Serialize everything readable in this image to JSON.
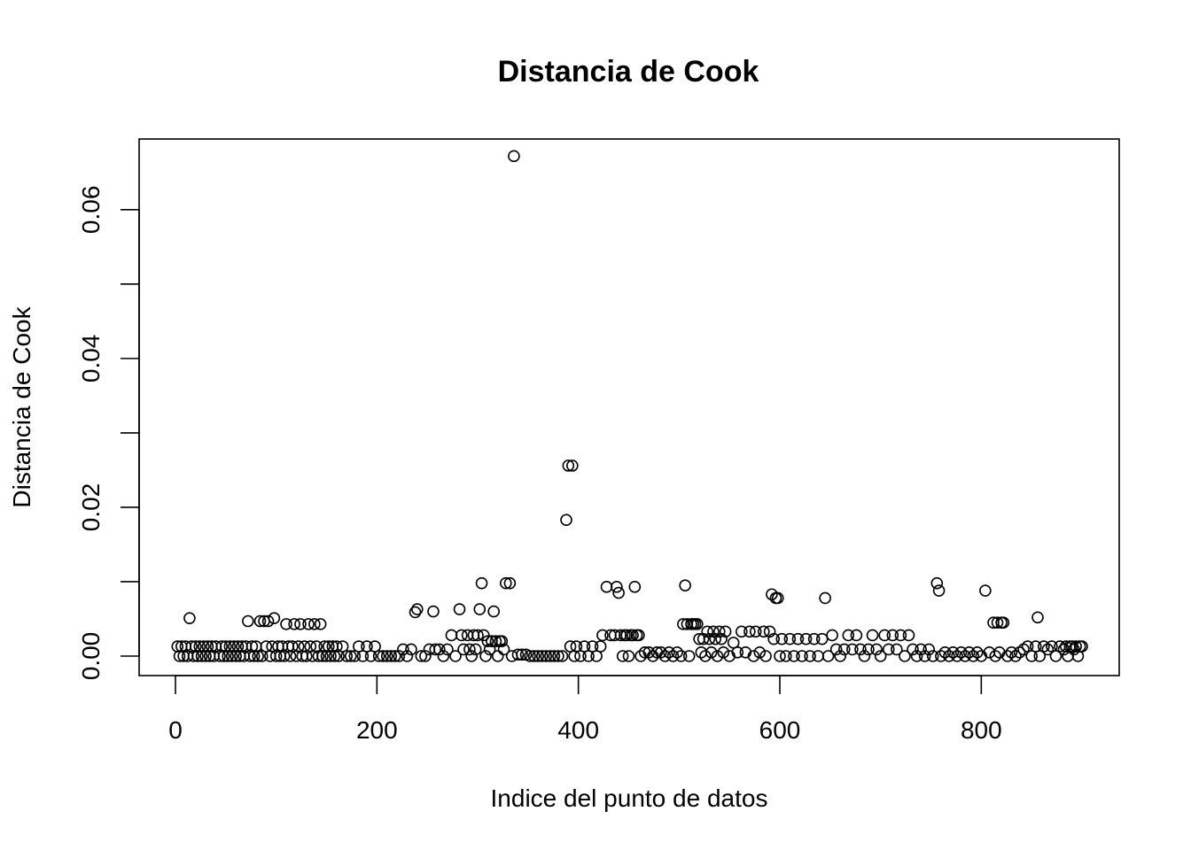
{
  "chart_data": {
    "type": "scatter",
    "title": "Distancia de Cook",
    "xlabel": "Indice del punto de datos",
    "ylabel": "Distancia de Cook",
    "xlim": [
      0,
      900
    ],
    "ylim": [
      0,
      0.067
    ],
    "x_ticks": [
      0,
      200,
      400,
      600,
      800
    ],
    "x_tick_labels": [
      "0",
      "200",
      "400",
      "600",
      "800"
    ],
    "y_ticks": [
      0.0,
      0.01,
      0.02,
      0.03,
      0.04,
      0.05,
      0.06
    ],
    "y_tick_labels": [
      "0.00",
      "",
      "0.02",
      "",
      "0.04",
      "",
      "0.06"
    ],
    "grid": false,
    "marker": "open-circle",
    "series": [
      {
        "points": [
          [
            2,
            0.0013
          ],
          [
            4,
            0.0
          ],
          [
            6,
            0.0013
          ],
          [
            8,
            0.0
          ],
          [
            10,
            0.0013
          ],
          [
            12,
            0.0
          ],
          [
            14,
            0.0051
          ],
          [
            16,
            0.0013
          ],
          [
            18,
            0.0
          ],
          [
            20,
            0.0013
          ],
          [
            22,
            0.0
          ],
          [
            24,
            0.0013
          ],
          [
            26,
            0.0
          ],
          [
            28,
            0.0013
          ],
          [
            30,
            0.0
          ],
          [
            32,
            0.0013
          ],
          [
            34,
            0.0
          ],
          [
            36,
            0.0013
          ],
          [
            38,
            0.0
          ],
          [
            40,
            0.0013
          ],
          [
            44,
            0.0
          ],
          [
            46,
            0.0013
          ],
          [
            48,
            0.0
          ],
          [
            50,
            0.0013
          ],
          [
            52,
            0.0
          ],
          [
            54,
            0.0013
          ],
          [
            56,
            0.0
          ],
          [
            58,
            0.0013
          ],
          [
            60,
            0.0
          ],
          [
            62,
            0.0013
          ],
          [
            64,
            0.0
          ],
          [
            66,
            0.0013
          ],
          [
            68,
            0.0
          ],
          [
            70,
            0.0013
          ],
          [
            72,
            0.0047
          ],
          [
            74,
            0.0
          ],
          [
            76,
            0.0013
          ],
          [
            78,
            0.0
          ],
          [
            80,
            0.0013
          ],
          [
            82,
            0.0
          ],
          [
            84,
            0.0047
          ],
          [
            86,
            0.0
          ],
          [
            88,
            0.0047
          ],
          [
            90,
            0.0013
          ],
          [
            92,
            0.0047
          ],
          [
            94,
            0.0
          ],
          [
            96,
            0.0013
          ],
          [
            98,
            0.0051
          ],
          [
            100,
            0.0
          ],
          [
            102,
            0.0013
          ],
          [
            104,
            0.0
          ],
          [
            106,
            0.0013
          ],
          [
            108,
            0.0
          ],
          [
            110,
            0.0043
          ],
          [
            112,
            0.0013
          ],
          [
            114,
            0.0
          ],
          [
            116,
            0.0013
          ],
          [
            118,
            0.0043
          ],
          [
            120,
            0.0
          ],
          [
            122,
            0.0013
          ],
          [
            124,
            0.0043
          ],
          [
            126,
            0.0
          ],
          [
            128,
            0.0013
          ],
          [
            130,
            0.0
          ],
          [
            132,
            0.0043
          ],
          [
            134,
            0.0013
          ],
          [
            136,
            0.0
          ],
          [
            138,
            0.0043
          ],
          [
            140,
            0.0013
          ],
          [
            142,
            0.0
          ],
          [
            144,
            0.0043
          ],
          [
            146,
            0.0
          ],
          [
            148,
            0.0013
          ],
          [
            150,
            0.0
          ],
          [
            152,
            0.0013
          ],
          [
            154,
            0.0
          ],
          [
            156,
            0.0013
          ],
          [
            158,
            0.0
          ],
          [
            160,
            0.0013
          ],
          [
            162,
            0.0
          ],
          [
            166,
            0.0013
          ],
          [
            170,
            0.0
          ],
          [
            174,
            0.0
          ],
          [
            178,
            0.0
          ],
          [
            182,
            0.0013
          ],
          [
            186,
            0.0
          ],
          [
            190,
            0.0013
          ],
          [
            194,
            0.0
          ],
          [
            198,
            0.0013
          ],
          [
            202,
            0.0
          ],
          [
            206,
            0.0
          ],
          [
            210,
            0.0
          ],
          [
            214,
            0.0
          ],
          [
            218,
            0.0
          ],
          [
            222,
            0.0
          ],
          [
            226,
            0.0009
          ],
          [
            230,
            0.0
          ],
          [
            234,
            0.0009
          ],
          [
            238,
            0.0059
          ],
          [
            240,
            0.0063
          ],
          [
            244,
            0.0
          ],
          [
            248,
            0.0
          ],
          [
            252,
            0.0009
          ],
          [
            256,
            0.006
          ],
          [
            258,
            0.0009
          ],
          [
            262,
            0.0009
          ],
          [
            266,
            0.0
          ],
          [
            270,
            0.0009
          ],
          [
            274,
            0.0028
          ],
          [
            278,
            0.0
          ],
          [
            282,
            0.0063
          ],
          [
            284,
            0.0028
          ],
          [
            286,
            0.0009
          ],
          [
            290,
            0.0028
          ],
          [
            292,
            0.0009
          ],
          [
            294,
            0.0
          ],
          [
            296,
            0.0028
          ],
          [
            298,
            0.0009
          ],
          [
            300,
            0.0028
          ],
          [
            302,
            0.0063
          ],
          [
            304,
            0.0098
          ],
          [
            306,
            0.0028
          ],
          [
            308,
            0.0
          ],
          [
            310,
            0.002
          ],
          [
            312,
            0.0009
          ],
          [
            314,
            0.002
          ],
          [
            316,
            0.006
          ],
          [
            318,
            0.002
          ],
          [
            320,
            0.0
          ],
          [
            322,
            0.002
          ],
          [
            324,
            0.002
          ],
          [
            326,
            0.0009
          ],
          [
            328,
            0.0098
          ],
          [
            332,
            0.0098
          ],
          [
            334,
            0.0
          ],
          [
            336,
            0.0672
          ],
          [
            340,
            0.0002
          ],
          [
            344,
            0.0002
          ],
          [
            348,
            0.0002
          ],
          [
            352,
            0.0
          ],
          [
            356,
            0.0
          ],
          [
            360,
            0.0
          ],
          [
            364,
            0.0
          ],
          [
            368,
            0.0
          ],
          [
            372,
            0.0
          ],
          [
            376,
            0.0
          ],
          [
            380,
            0.0
          ],
          [
            384,
            0.0
          ],
          [
            388,
            0.0183
          ],
          [
            390,
            0.0256
          ],
          [
            392,
            0.0013
          ],
          [
            394,
            0.0256
          ],
          [
            396,
            0.0
          ],
          [
            398,
            0.0013
          ],
          [
            402,
            0.0
          ],
          [
            406,
            0.0013
          ],
          [
            410,
            0.0
          ],
          [
            414,
            0.0013
          ],
          [
            418,
            0.0
          ],
          [
            422,
            0.0013
          ],
          [
            424,
            0.0028
          ],
          [
            428,
            0.0093
          ],
          [
            432,
            0.0028
          ],
          [
            436,
            0.0028
          ],
          [
            438,
            0.0093
          ],
          [
            440,
            0.0085
          ],
          [
            442,
            0.0028
          ],
          [
            444,
            0.0
          ],
          [
            446,
            0.0028
          ],
          [
            448,
            0.0028
          ],
          [
            450,
            0.0
          ],
          [
            452,
            0.0028
          ],
          [
            454,
            0.0028
          ],
          [
            456,
            0.0093
          ],
          [
            458,
            0.0028
          ],
          [
            460,
            0.0028
          ],
          [
            462,
            0.0
          ],
          [
            466,
            0.0005
          ],
          [
            470,
            0.0005
          ],
          [
            474,
            0.0
          ],
          [
            478,
            0.0005
          ],
          [
            482,
            0.0005
          ],
          [
            486,
            0.0
          ],
          [
            490,
            0.0005
          ],
          [
            494,
            0.0
          ],
          [
            498,
            0.0005
          ],
          [
            502,
            0.0
          ],
          [
            504,
            0.0043
          ],
          [
            506,
            0.0095
          ],
          [
            508,
            0.0043
          ],
          [
            510,
            0.0
          ],
          [
            512,
            0.0043
          ],
          [
            514,
            0.0043
          ],
          [
            516,
            0.0043
          ],
          [
            518,
            0.0043
          ],
          [
            520,
            0.0023
          ],
          [
            522,
            0.0005
          ],
          [
            524,
            0.0023
          ],
          [
            526,
            0.0
          ],
          [
            528,
            0.0033
          ],
          [
            530,
            0.0023
          ],
          [
            532,
            0.0005
          ],
          [
            534,
            0.0033
          ],
          [
            536,
            0.0023
          ],
          [
            538,
            0.0
          ],
          [
            540,
            0.0033
          ],
          [
            542,
            0.0023
          ],
          [
            544,
            0.0005
          ],
          [
            546,
            0.0033
          ],
          [
            550,
            0.0
          ],
          [
            554,
            0.0018
          ],
          [
            558,
            0.0005
          ],
          [
            562,
            0.0033
          ],
          [
            566,
            0.0005
          ],
          [
            570,
            0.0033
          ],
          [
            574,
            0.0
          ],
          [
            576,
            0.0033
          ],
          [
            580,
            0.0005
          ],
          [
            584,
            0.0033
          ],
          [
            586,
            0.0
          ],
          [
            590,
            0.0033
          ],
          [
            592,
            0.0083
          ],
          [
            594,
            0.0023
          ],
          [
            596,
            0.0078
          ],
          [
            598,
            0.0078
          ],
          [
            600,
            0.0
          ],
          [
            602,
            0.0023
          ],
          [
            606,
            0.0
          ],
          [
            610,
            0.0023
          ],
          [
            614,
            0.0
          ],
          [
            618,
            0.0023
          ],
          [
            622,
            0.0
          ],
          [
            626,
            0.0023
          ],
          [
            630,
            0.0
          ],
          [
            634,
            0.0023
          ],
          [
            638,
            0.0
          ],
          [
            642,
            0.0023
          ],
          [
            645,
            0.0078
          ],
          [
            648,
            0.0
          ],
          [
            652,
            0.0028
          ],
          [
            656,
            0.0009
          ],
          [
            660,
            0.0
          ],
          [
            664,
            0.0009
          ],
          [
            668,
            0.0028
          ],
          [
            672,
            0.0009
          ],
          [
            676,
            0.0028
          ],
          [
            680,
            0.0009
          ],
          [
            684,
            0.0
          ],
          [
            688,
            0.0009
          ],
          [
            692,
            0.0028
          ],
          [
            696,
            0.0009
          ],
          [
            700,
            0.0
          ],
          [
            704,
            0.0028
          ],
          [
            708,
            0.0009
          ],
          [
            712,
            0.0028
          ],
          [
            716,
            0.0009
          ],
          [
            720,
            0.0028
          ],
          [
            724,
            0.0
          ],
          [
            728,
            0.0028
          ],
          [
            732,
            0.0009
          ],
          [
            736,
            0.0
          ],
          [
            740,
            0.0009
          ],
          [
            744,
            0.0
          ],
          [
            748,
            0.0009
          ],
          [
            752,
            0.0
          ],
          [
            756,
            0.0098
          ],
          [
            758,
            0.0088
          ],
          [
            760,
            0.0
          ],
          [
            764,
            0.0005
          ],
          [
            768,
            0.0
          ],
          [
            772,
            0.0005
          ],
          [
            776,
            0.0
          ],
          [
            780,
            0.0005
          ],
          [
            784,
            0.0
          ],
          [
            788,
            0.0005
          ],
          [
            792,
            0.0
          ],
          [
            796,
            0.0005
          ],
          [
            800,
            0.0
          ],
          [
            804,
            0.0088
          ],
          [
            808,
            0.0005
          ],
          [
            812,
            0.0045
          ],
          [
            814,
            0.0
          ],
          [
            816,
            0.0045
          ],
          [
            818,
            0.0005
          ],
          [
            820,
            0.0045
          ],
          [
            822,
            0.0045
          ],
          [
            826,
            0.0
          ],
          [
            830,
            0.0005
          ],
          [
            834,
            0.0
          ],
          [
            838,
            0.0005
          ],
          [
            842,
            0.0009
          ],
          [
            846,
            0.0013
          ],
          [
            850,
            0.0
          ],
          [
            854,
            0.0013
          ],
          [
            856,
            0.0052
          ],
          [
            858,
            0.0
          ],
          [
            862,
            0.0013
          ],
          [
            866,
            0.0009
          ],
          [
            870,
            0.0013
          ],
          [
            874,
            0.0
          ],
          [
            878,
            0.0013
          ],
          [
            882,
            0.0009
          ],
          [
            884,
            0.0013
          ],
          [
            886,
            0.0
          ],
          [
            888,
            0.0013
          ],
          [
            890,
            0.0013
          ],
          [
            892,
            0.0009
          ],
          [
            894,
            0.0013
          ],
          [
            896,
            0.0
          ],
          [
            898,
            0.0013
          ],
          [
            900,
            0.0013
          ]
        ]
      }
    ]
  }
}
